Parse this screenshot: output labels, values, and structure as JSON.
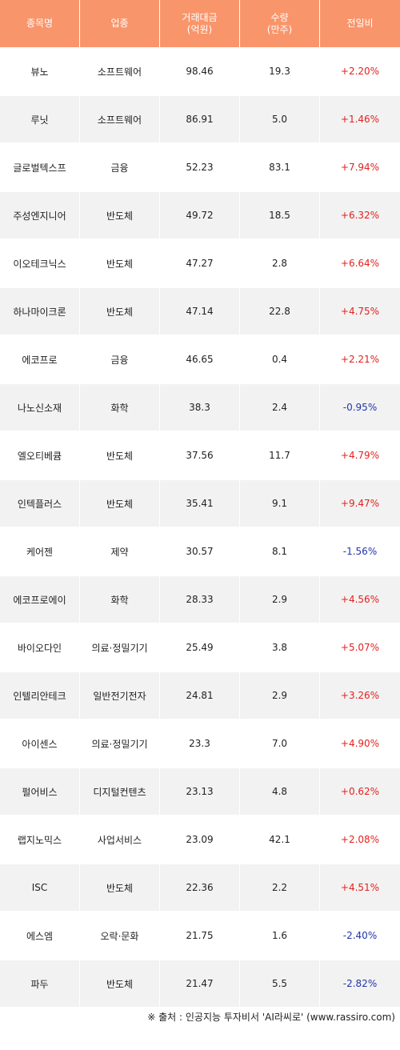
{
  "headers": [
    "종목명",
    "업종",
    "거래대금\n(억원)",
    "수량\n(만주)",
    "전일비"
  ],
  "colors": {
    "header_bg": "#f9956b",
    "up": "#e0221f",
    "down": "#2136a8",
    "row_alt": "#f2f2f2"
  },
  "rows": [
    {
      "name": "뷰노",
      "sector": "소프트웨어",
      "amount": "98.46",
      "volume": "19.3",
      "change": "+2.20%"
    },
    {
      "name": "루닛",
      "sector": "소프트웨어",
      "amount": "86.91",
      "volume": "5.0",
      "change": "+1.46%"
    },
    {
      "name": "글로벌텍스프",
      "sector": "금융",
      "amount": "52.23",
      "volume": "83.1",
      "change": "+7.94%"
    },
    {
      "name": "주성엔지니어",
      "sector": "반도체",
      "amount": "49.72",
      "volume": "18.5",
      "change": "+6.32%"
    },
    {
      "name": "이오테크닉스",
      "sector": "반도체",
      "amount": "47.27",
      "volume": "2.8",
      "change": "+6.64%"
    },
    {
      "name": "하나마이크론",
      "sector": "반도체",
      "amount": "47.14",
      "volume": "22.8",
      "change": "+4.75%"
    },
    {
      "name": "에코프로",
      "sector": "금융",
      "amount": "46.65",
      "volume": "0.4",
      "change": "+2.21%"
    },
    {
      "name": "나노신소재",
      "sector": "화학",
      "amount": "38.3",
      "volume": "2.4",
      "change": "-0.95%"
    },
    {
      "name": "엘오티베큠",
      "sector": "반도체",
      "amount": "37.56",
      "volume": "11.7",
      "change": "+4.79%"
    },
    {
      "name": "인텍플러스",
      "sector": "반도체",
      "amount": "35.41",
      "volume": "9.1",
      "change": "+9.47%"
    },
    {
      "name": "케어젠",
      "sector": "제약",
      "amount": "30.57",
      "volume": "8.1",
      "change": "-1.56%"
    },
    {
      "name": "에코프로에이",
      "sector": "화학",
      "amount": "28.33",
      "volume": "2.9",
      "change": "+4.56%"
    },
    {
      "name": "바이오다인",
      "sector": "의료·정밀기기",
      "amount": "25.49",
      "volume": "3.8",
      "change": "+5.07%"
    },
    {
      "name": "인텔리안테크",
      "sector": "일반전기전자",
      "amount": "24.81",
      "volume": "2.9",
      "change": "+3.26%"
    },
    {
      "name": "아이센스",
      "sector": "의료·정밀기기",
      "amount": "23.3",
      "volume": "7.0",
      "change": "+4.90%"
    },
    {
      "name": "펄어비스",
      "sector": "디지털컨텐츠",
      "amount": "23.13",
      "volume": "4.8",
      "change": "+0.62%"
    },
    {
      "name": "랩지노믹스",
      "sector": "사업서비스",
      "amount": "23.09",
      "volume": "42.1",
      "change": "+2.08%"
    },
    {
      "name": "ISC",
      "sector": "반도체",
      "amount": "22.36",
      "volume": "2.2",
      "change": "+4.51%"
    },
    {
      "name": "에스엠",
      "sector": "오락·문화",
      "amount": "21.75",
      "volume": "1.6",
      "change": "-2.40%"
    },
    {
      "name": "파두",
      "sector": "반도체",
      "amount": "21.47",
      "volume": "5.5",
      "change": "-2.82%"
    }
  ],
  "footer": "※ 출처 : 인공지능 투자비서 'AI라씨로' (www.rassiro.com)"
}
